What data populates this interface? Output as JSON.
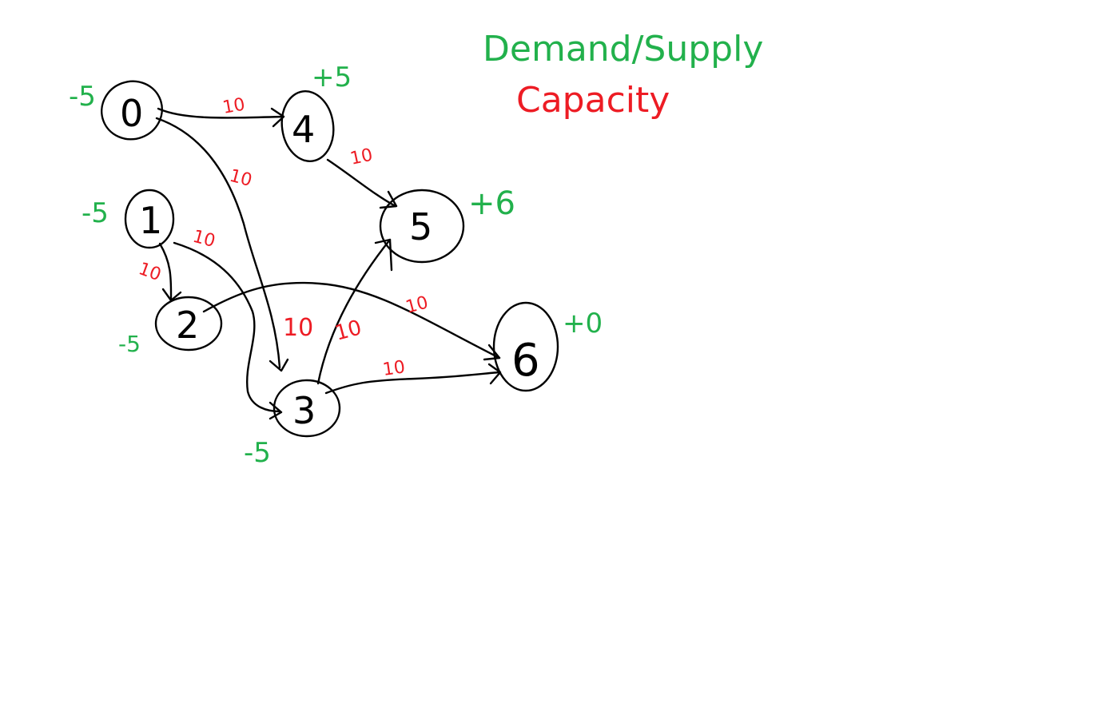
{
  "colors": {
    "ink": "#000000",
    "demand_supply": "#22b14c",
    "capacity": "#ed1c24",
    "background": "#ffffff"
  },
  "legend": {
    "demand_supply": "Demand/Supply",
    "capacity": "Capacity"
  },
  "nodes": [
    {
      "id": "0",
      "label": "0",
      "demand": "-5"
    },
    {
      "id": "1",
      "label": "1",
      "demand": "-5"
    },
    {
      "id": "2",
      "label": "2",
      "demand": "-5"
    },
    {
      "id": "3",
      "label": "3",
      "demand": "-5"
    },
    {
      "id": "4",
      "label": "4",
      "demand": "+5"
    },
    {
      "id": "5",
      "label": "5",
      "demand": "+6"
    },
    {
      "id": "6",
      "label": "6",
      "demand": "+0"
    }
  ],
  "edges": [
    {
      "from": "0",
      "to": "4",
      "capacity": "10"
    },
    {
      "from": "0",
      "to": "3",
      "capacity": "10"
    },
    {
      "from": "4",
      "to": "5",
      "capacity": "10"
    },
    {
      "from": "1",
      "to": "2",
      "capacity": "10"
    },
    {
      "from": "1",
      "to": "3",
      "capacity": "10"
    },
    {
      "from": "2",
      "to": "6",
      "capacity": "10"
    },
    {
      "from": "3",
      "to": "5",
      "capacity": "10"
    },
    {
      "from": "3",
      "to": "6",
      "capacity": "10"
    },
    {
      "from": "0",
      "to": "3",
      "capacity": "10",
      "note": "label near arrowhead"
    }
  ]
}
